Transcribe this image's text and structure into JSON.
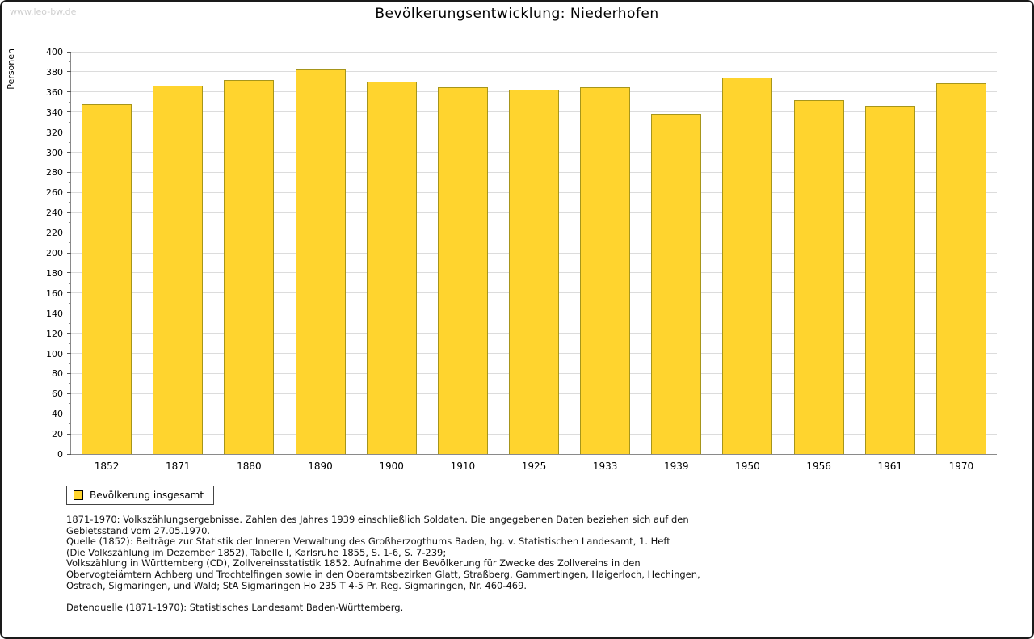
{
  "watermark": "www.leo-bw.de",
  "chart_data": {
    "type": "bar",
    "title": "Bevölkerungsentwicklung: Niederhofen",
    "xlabel": "",
    "ylabel": "Personen",
    "categories": [
      "1852",
      "1871",
      "1880",
      "1890",
      "1900",
      "1910",
      "1925",
      "1933",
      "1939",
      "1950",
      "1956",
      "1961",
      "1970"
    ],
    "values": [
      348,
      366,
      372,
      382,
      370,
      365,
      362,
      365,
      338,
      374,
      352,
      346,
      369
    ],
    "ylim": [
      0,
      400
    ],
    "ytick_step": 20,
    "grid": true,
    "legend_entries": [
      "Bevölkerung insgesamt"
    ],
    "legend_position": "bottom-left",
    "bar_color": "#FFD42E",
    "bar_border_color": "#A6951B"
  },
  "legend": {
    "label": "Bevölkerung insgesamt"
  },
  "footer": {
    "notes": "1871-1970: Volkszählungsergebnisse. Zahlen des Jahres 1939 einschließlich Soldaten. Die angegebenen Daten beziehen sich auf den\nGebietsstand vom 27.05.1970.\nQuelle (1852): Beiträge zur Statistik der Inneren Verwaltung des Großherzogthums Baden, hg. v. Statistischen Landesamt, 1. Heft\n(Die Volkszählung im Dezember 1852), Tabelle I, Karlsruhe 1855, S. 1-6, S. 7-239;\nVolkszählung in Württemberg (CD), Zollvereinsstatistik 1852. Aufnahme der Bevölkerung für Zwecke des Zollvereins in den\nObervogteiämtern Achberg und Trochtelfingen sowie in den Oberamtsbezirken Glatt, Straßberg, Gammertingen, Haigerloch, Hechingen,\nOstrach, Sigmaringen, und Wald; StA Sigmaringen Ho 235 T 4-5 Pr. Reg. Sigmaringen, Nr. 460-469.",
    "datasource": "Datenquelle (1871-1970): Statistisches Landesamt Baden-Württemberg."
  }
}
